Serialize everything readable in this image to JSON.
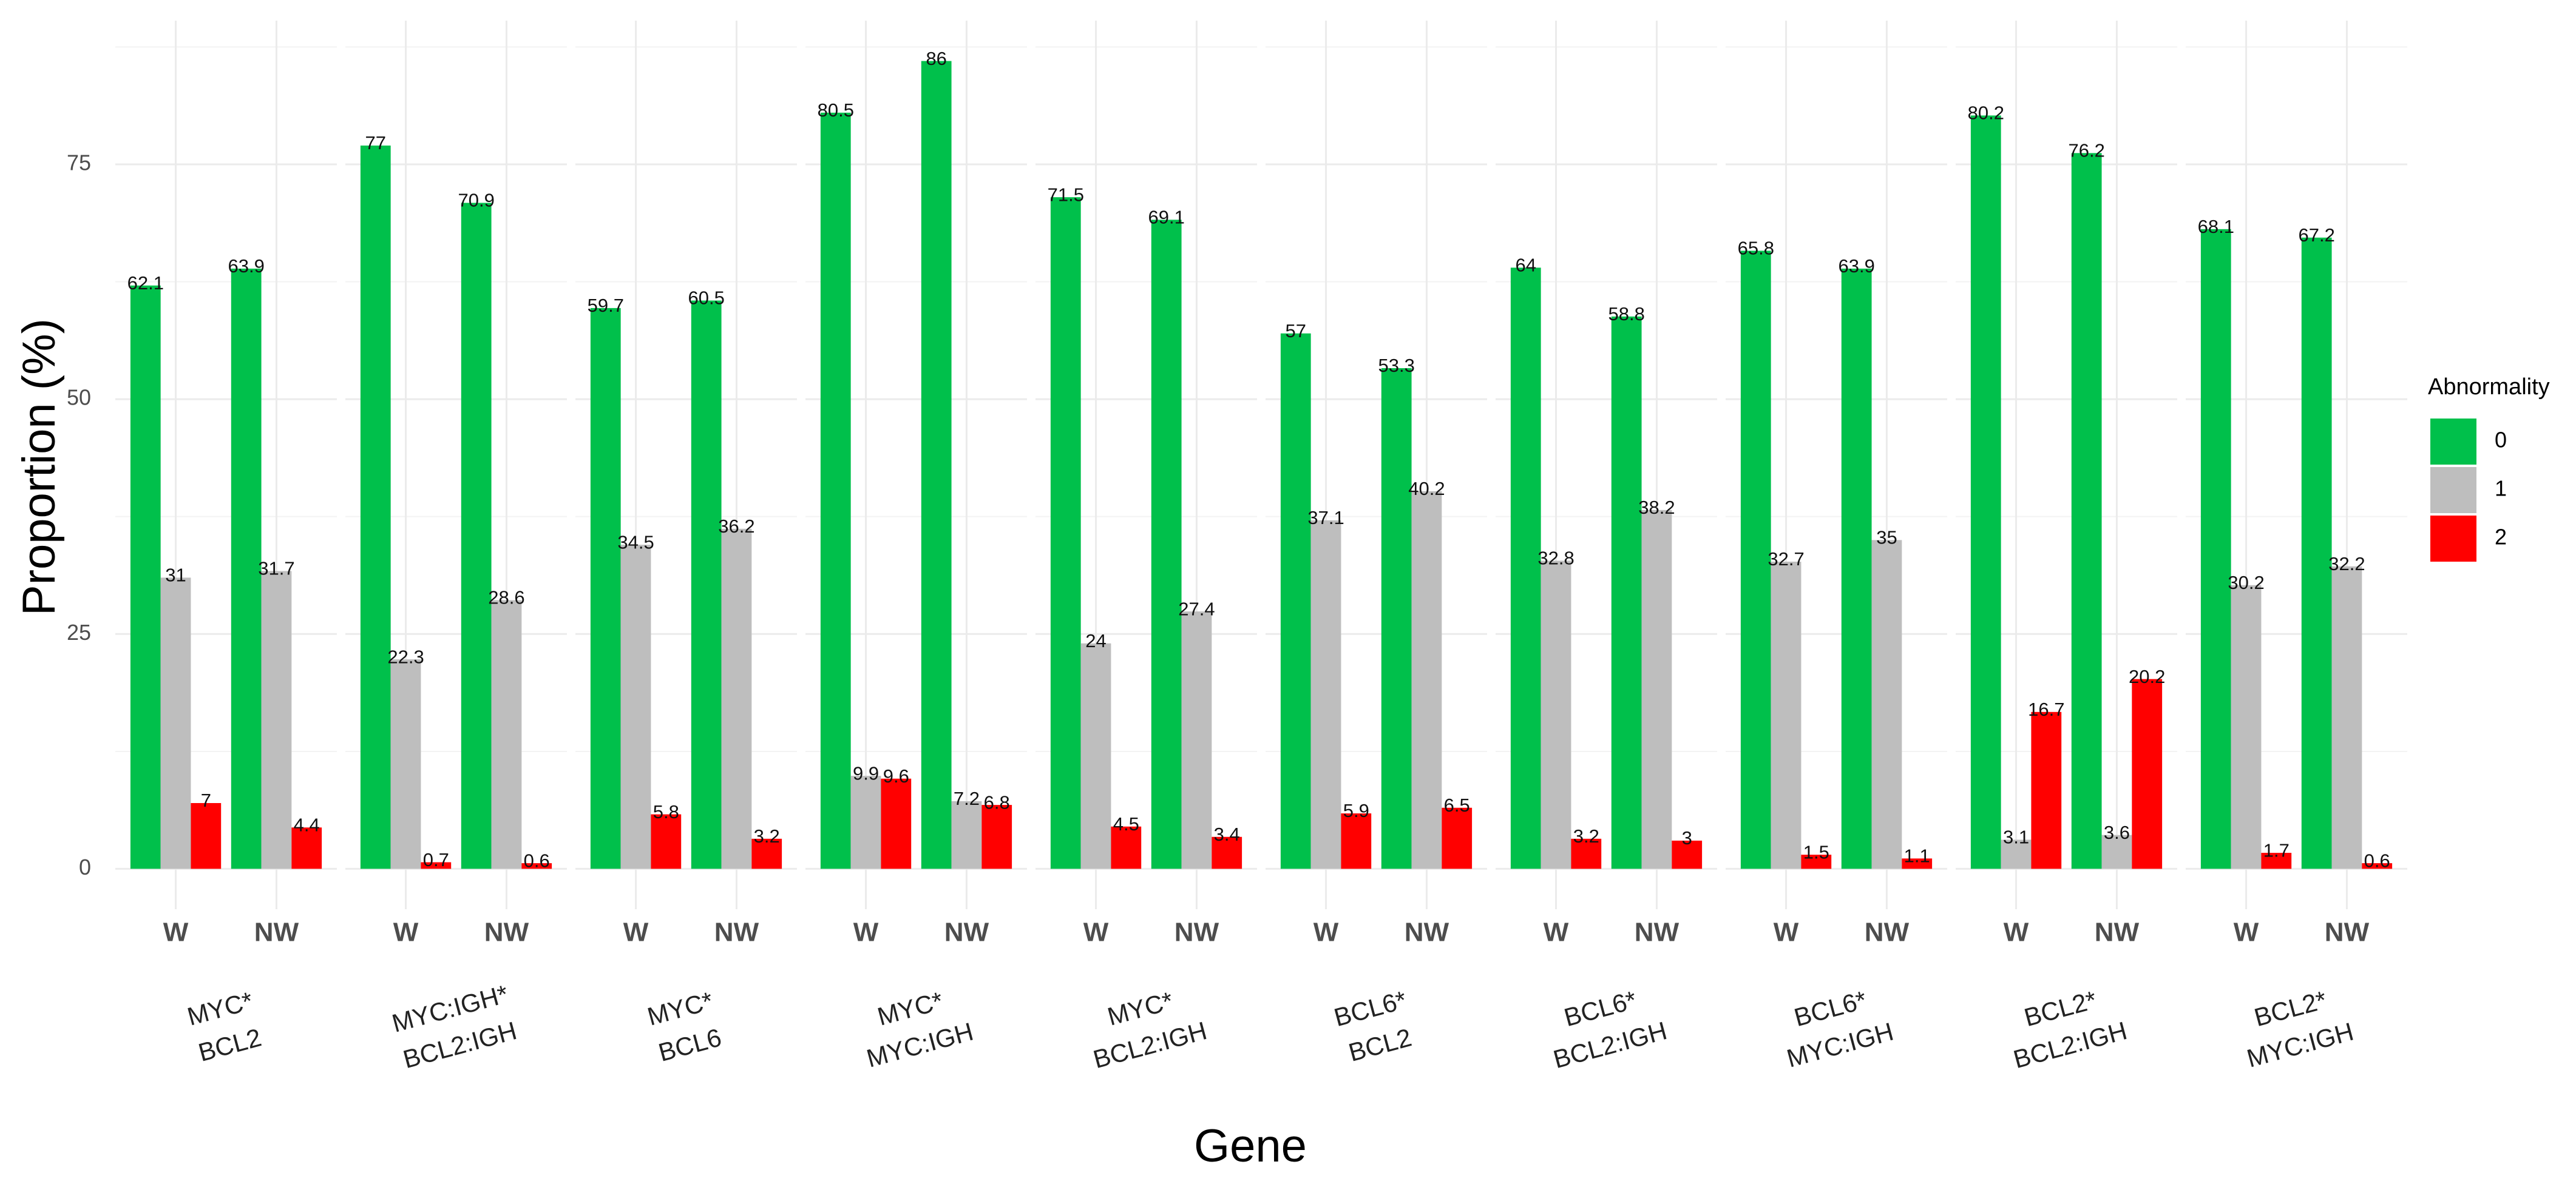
{
  "chart_data": {
    "type": "bar",
    "x_label": "Gene",
    "y_label": "Proportion (%)",
    "legend_title": "Abnormality",
    "legend_position": "right",
    "grid": true,
    "ylim": [
      -4.3,
      90.3
    ],
    "yticks": [
      0,
      25,
      50,
      75
    ],
    "yminor": [
      12.5,
      37.5,
      62.5,
      87.5
    ],
    "facets": [
      {
        "label": [
          "MYC*",
          "BCL2"
        ]
      },
      {
        "label": [
          "MYC:IGH*",
          "BCL2:IGH"
        ]
      },
      {
        "label": [
          "MYC*",
          "BCL6"
        ]
      },
      {
        "label": [
          "MYC*",
          "MYC:IGH"
        ]
      },
      {
        "label": [
          "MYC*",
          "BCL2:IGH"
        ]
      },
      {
        "label": [
          "BCL6*",
          "BCL2"
        ]
      },
      {
        "label": [
          "BCL6*",
          "BCL2:IGH"
        ]
      },
      {
        "label": [
          "BCL6*",
          "MYC:IGH"
        ]
      },
      {
        "label": [
          "BCL2*",
          "BCL2:IGH"
        ]
      },
      {
        "label": [
          "BCL2*",
          "MYC:IGH"
        ]
      }
    ],
    "categories": [
      "W",
      "NW",
      "W",
      "NW",
      "W",
      "NW",
      "W",
      "NW",
      "W",
      "NW",
      "W",
      "NW",
      "W",
      "NW",
      "W",
      "NW",
      "W",
      "NW",
      "W",
      "NW"
    ],
    "series": [
      {
        "name": "0",
        "color": "#00c04b",
        "values": [
          62.1,
          63.9,
          77,
          70.9,
          59.7,
          60.5,
          80.5,
          86,
          71.5,
          69.1,
          57,
          53.3,
          64,
          58.8,
          65.8,
          63.9,
          80.2,
          76.2,
          68.1,
          67.2
        ]
      },
      {
        "name": "1",
        "color": "#bebebe",
        "values": [
          31,
          31.7,
          22.3,
          28.6,
          34.5,
          36.2,
          9.9,
          7.2,
          24,
          27.4,
          37.1,
          40.2,
          32.8,
          38.2,
          32.7,
          35,
          3.1,
          3.6,
          30.2,
          32.2
        ]
      },
      {
        "name": "2",
        "color": "#ff0000",
        "values": [
          7,
          4.4,
          0.7,
          0.6,
          5.8,
          3.2,
          9.6,
          6.8,
          4.5,
          3.4,
          5.9,
          6.5,
          3.2,
          3,
          1.5,
          1.1,
          16.7,
          20.2,
          1.7,
          0.6
        ]
      }
    ]
  }
}
